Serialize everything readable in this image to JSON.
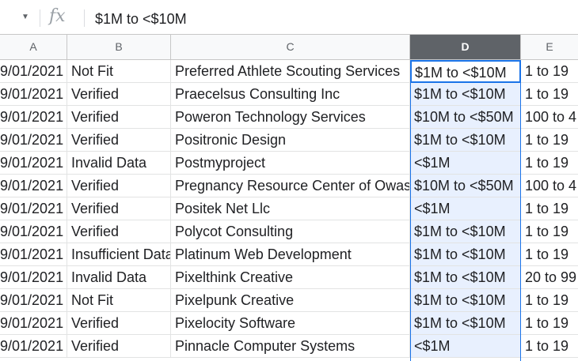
{
  "formula_bar": {
    "fx_label": "fx",
    "content": "$1M to <$10M"
  },
  "columns": [
    "A",
    "B",
    "C",
    "D",
    "E"
  ],
  "selected_column": "D",
  "rows": [
    {
      "a": "9/01/2021",
      "b": "Not Fit",
      "c": "Preferred Athlete Scouting Services",
      "d": "$1M to <$10M",
      "e": "1 to 19"
    },
    {
      "a": "9/01/2021",
      "b": "Verified",
      "c": "Praecelsus Consulting Inc",
      "d": "$1M to <$10M",
      "e": "1 to 19"
    },
    {
      "a": "9/01/2021",
      "b": "Verified",
      "c": "Poweron Technology Services",
      "d": "$10M to <$50M",
      "e": "100 to 4"
    },
    {
      "a": "9/01/2021",
      "b": "Verified",
      "c": "Positronic Design",
      "d": "$1M to <$10M",
      "e": "1 to 19"
    },
    {
      "a": "9/01/2021",
      "b": "Invalid Data",
      "c": "Postmyproject",
      "d": "<$1M",
      "e": "1 to 19"
    },
    {
      "a": "9/01/2021",
      "b": "Verified",
      "c": "Pregnancy Resource Center of Owas",
      "d": "$10M to <$50M",
      "e": "100 to 4"
    },
    {
      "a": "9/01/2021",
      "b": "Verified",
      "c": "Positek Net Llc",
      "d": "<$1M",
      "e": "1 to 19"
    },
    {
      "a": "9/01/2021",
      "b": "Verified",
      "c": "Polycot Consulting",
      "d": "$1M to <$10M",
      "e": "1 to 19"
    },
    {
      "a": "9/01/2021",
      "b": "Insufficient Data",
      "c": "Platinum Web Development",
      "d": "$1M to <$10M",
      "e": "1 to 19"
    },
    {
      "a": "9/01/2021",
      "b": "Invalid Data",
      "c": "Pixelthink Creative",
      "d": "$1M to <$10M",
      "e": "20 to 99"
    },
    {
      "a": "9/01/2021",
      "b": "Not Fit",
      "c": "Pixelpunk Creative",
      "d": "$1M to <$10M",
      "e": "1 to 19"
    },
    {
      "a": "9/01/2021",
      "b": "Verified",
      "c": "Pixelocity Software",
      "d": "$1M to <$10M",
      "e": "1 to 19"
    },
    {
      "a": "9/01/2021",
      "b": "Verified",
      "c": "Pinnacle Computer Systems",
      "d": "<$1M",
      "e": "1 to 19"
    }
  ],
  "colors": {
    "selection": "#1a73e8",
    "selection_fill": "#e8f0fe",
    "header_selected": "#5f6368"
  }
}
